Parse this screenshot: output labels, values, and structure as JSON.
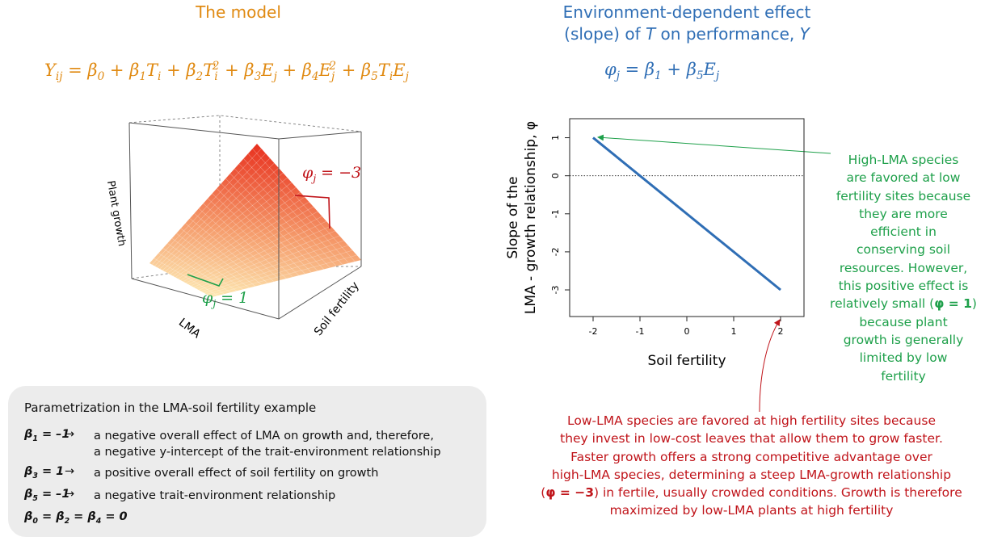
{
  "model": {
    "title": "The model",
    "equation": [
      {
        "t": "Y",
        "sub": "ij"
      },
      {
        "t": " = "
      },
      {
        "t": "β",
        "sub": "0"
      },
      {
        "t": " + "
      },
      {
        "t": "β",
        "sub": "1"
      },
      {
        "t": "T",
        "sub": "i"
      },
      {
        "t": " + "
      },
      {
        "t": "β",
        "sub": "2"
      },
      {
        "t": "T",
        "sub": "i",
        "sup": "2"
      },
      {
        "t": " + "
      },
      {
        "t": "β",
        "sub": "3"
      },
      {
        "t": "E",
        "sub": "j"
      },
      {
        "t": " + "
      },
      {
        "t": "β",
        "sub": "4"
      },
      {
        "t": "E",
        "sub": "j",
        "sup": "2"
      },
      {
        "t": " + "
      },
      {
        "t": "β",
        "sub": "5"
      },
      {
        "t": "T",
        "sub": "i"
      },
      {
        "t": "E",
        "sub": "j"
      }
    ]
  },
  "surface": {
    "z_label": "Plant growth",
    "x_label": "LMA",
    "y_label": "Soil fertility",
    "steep_slope": [
      {
        "t": "φ",
        "sub": "j"
      },
      {
        "t": " = −3"
      }
    ],
    "shallow_slope": [
      {
        "t": "φ",
        "sub": "j"
      },
      {
        "t": " = 1"
      }
    ]
  },
  "parametrization": {
    "title": "Parametrization in the LMA-soil fertility example",
    "rows": [
      {
        "symbol": [
          {
            "t": "β",
            "sub": "1"
          },
          {
            "t": " = –1"
          }
        ],
        "arrow": "→",
        "text": [
          "a negative overall effect of LMA on growth and, therefore,",
          "a negative y-intercept of the trait-environment relationship"
        ]
      },
      {
        "symbol": [
          {
            "t": "β",
            "sub": "3"
          },
          {
            "t": " = 1"
          }
        ],
        "arrow": "→",
        "text": [
          "a positive overall effect of soil fertility on growth"
        ]
      },
      {
        "symbol": [
          {
            "t": "β",
            "sub": "5"
          },
          {
            "t": " = –1"
          }
        ],
        "arrow": "→",
        "text": [
          "a negative trait-environment relationship"
        ]
      },
      {
        "symbol": [
          {
            "t": "β",
            "sub": "0"
          },
          {
            "t": " = "
          },
          {
            "t": "β",
            "sub": "2"
          },
          {
            "t": " = "
          },
          {
            "t": "β",
            "sub": "4"
          },
          {
            "t": " = 0"
          }
        ]
      }
    ]
  },
  "effect": {
    "title": [
      [
        {
          "t": "Environment-dependent effect"
        }
      ],
      [
        {
          "t": "(slope) of "
        },
        {
          "t": "T",
          "i": true
        },
        {
          "t": " on performance, "
        },
        {
          "t": "Y",
          "i": true
        }
      ]
    ],
    "equation": [
      {
        "t": "φ",
        "sub": "j"
      },
      {
        "t": " = "
      },
      {
        "t": "β",
        "sub": "1"
      },
      {
        "t": " + "
      },
      {
        "t": "β",
        "sub": "5"
      },
      {
        "t": "E",
        "sub": "j"
      }
    ]
  },
  "chart_data": {
    "type": "line",
    "xlabel": "Soil fertility",
    "ylabel": [
      "Slope of the",
      "LMA - growth relationship, φ"
    ],
    "x": [
      -2,
      2
    ],
    "series": [
      {
        "color": "#2f6eb5",
        "values": [
          1,
          -3
        ]
      }
    ],
    "xlim": [
      -2.5,
      2.5
    ],
    "ylim": [
      -3.7,
      1.5
    ],
    "xticks": [
      -2,
      -1,
      0,
      1,
      2
    ],
    "yticks": [
      -3,
      -2,
      -1,
      0,
      1
    ],
    "reference_line": 0
  },
  "green_note": [
    [
      {
        "t": "High-LMA species"
      }
    ],
    [
      {
        "t": "are favored at low"
      }
    ],
    [
      {
        "t": "fertility sites because"
      }
    ],
    [
      {
        "t": "they are more"
      }
    ],
    [
      {
        "t": "efficient in"
      }
    ],
    [
      {
        "t": "conserving soil"
      }
    ],
    [
      {
        "t": "resources. However,"
      }
    ],
    [
      {
        "t": "this positive effect is"
      }
    ],
    [
      {
        "t": "relatively small ("
      },
      {
        "t": "φ = 1",
        "b": true
      },
      {
        "t": ")"
      }
    ],
    [
      {
        "t": "because plant"
      }
    ],
    [
      {
        "t": "growth is generally"
      }
    ],
    [
      {
        "t": "limited by low"
      }
    ],
    [
      {
        "t": "fertility"
      }
    ]
  ],
  "red_note": [
    [
      {
        "t": "Low-LMA species are favored at high fertility sites because"
      }
    ],
    [
      {
        "t": "they invest in low-cost leaves that allow them to grow faster."
      }
    ],
    [
      {
        "t": "Faster growth offers a strong competitive advantage over"
      }
    ],
    [
      {
        "t": "high-LMA species, determining a steep LMA-growth relationship"
      }
    ],
    [
      {
        "t": "("
      },
      {
        "t": "φ = −3",
        "b": true
      },
      {
        "t": ") in fertile, usually crowded conditions. Growth is therefore"
      }
    ],
    [
      {
        "t": "maximized by low-LMA plants at high fertility"
      }
    ]
  ]
}
